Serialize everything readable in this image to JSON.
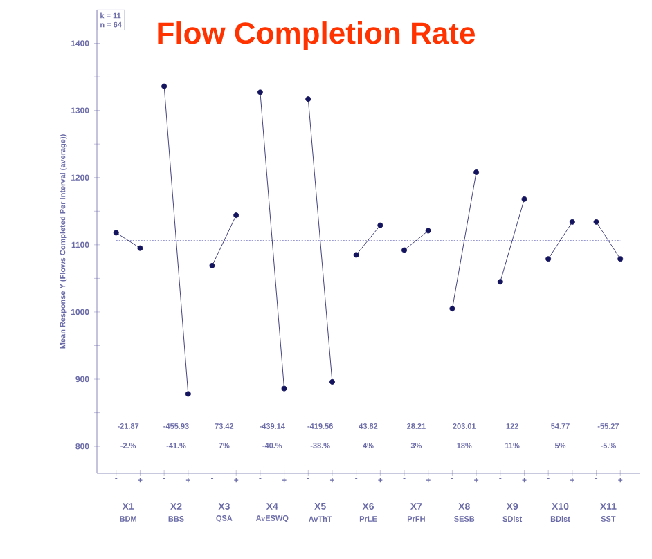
{
  "chart_data": {
    "type": "line",
    "title": "Flow Completion Rate",
    "ylabel": "Mean Response Y (Flows Completed Per Interval (average))",
    "categories": [
      "-",
      "+",
      "-",
      "+",
      "-",
      "+",
      "-",
      "+",
      "-",
      "+",
      "-",
      "+",
      "-",
      "+",
      "-",
      "+",
      "-",
      "+",
      "-",
      "+",
      "-",
      "+"
    ],
    "series": [
      {
        "color": "#14145e",
        "values": [
          1118,
          1095,
          null,
          null,
          null,
          null,
          null,
          null,
          null,
          null,
          null,
          null,
          null,
          null,
          null,
          null,
          null,
          null,
          null,
          null,
          null,
          null
        ]
      },
      {
        "color": "#14145e",
        "values": [
          null,
          null,
          1336,
          878,
          null,
          null,
          null,
          null,
          null,
          null,
          null,
          null,
          null,
          null,
          null,
          null,
          null,
          null,
          null,
          null,
          null,
          null
        ]
      },
      {
        "color": "#14145e",
        "values": [
          null,
          null,
          null,
          null,
          1069,
          1144,
          null,
          null,
          null,
          null,
          null,
          null,
          null,
          null,
          null,
          null,
          null,
          null,
          null,
          null,
          null,
          null
        ]
      },
      {
        "color": "#14145e",
        "values": [
          null,
          null,
          null,
          null,
          null,
          null,
          1327,
          886,
          null,
          null,
          null,
          null,
          null,
          null,
          null,
          null,
          null,
          null,
          null,
          null,
          null,
          null
        ]
      },
      {
        "color": "#14145e",
        "values": [
          null,
          null,
          null,
          null,
          null,
          null,
          null,
          null,
          1317,
          896,
          null,
          null,
          null,
          null,
          null,
          null,
          null,
          null,
          null,
          null,
          null,
          null
        ]
      },
      {
        "color": "#14145e",
        "values": [
          null,
          null,
          null,
          null,
          null,
          null,
          null,
          null,
          null,
          null,
          1085,
          1129,
          null,
          null,
          null,
          null,
          null,
          null,
          null,
          null,
          null,
          null
        ]
      },
      {
        "color": "#14145e",
        "values": [
          null,
          null,
          null,
          null,
          null,
          null,
          null,
          null,
          null,
          null,
          null,
          null,
          1092,
          1121,
          null,
          null,
          null,
          null,
          null,
          null,
          null,
          null
        ]
      },
      {
        "color": "#14145e",
        "values": [
          null,
          null,
          null,
          null,
          null,
          null,
          null,
          null,
          null,
          null,
          null,
          null,
          null,
          null,
          1005,
          1208,
          null,
          null,
          null,
          null,
          null,
          null
        ]
      },
      {
        "color": "#14145e",
        "values": [
          null,
          null,
          null,
          null,
          null,
          null,
          null,
          null,
          null,
          null,
          null,
          null,
          null,
          null,
          null,
          null,
          1045,
          1168,
          null,
          null,
          null,
          null
        ]
      },
      {
        "color": "#14145e",
        "values": [
          null,
          null,
          null,
          null,
          null,
          null,
          null,
          null,
          null,
          null,
          null,
          null,
          null,
          null,
          null,
          null,
          null,
          null,
          1079,
          1134,
          null,
          null
        ]
      },
      {
        "color": "#14145e",
        "values": [
          null,
          null,
          null,
          null,
          null,
          null,
          null,
          null,
          null,
          null,
          null,
          null,
          null,
          null,
          null,
          null,
          null,
          null,
          null,
          null,
          1134,
          1079
        ]
      }
    ],
    "ylim": [
      760,
      1450
    ],
    "yticks": [
      800,
      {
        "value": 850,
        "label": null
      },
      900,
      {
        "value": 950,
        "label": null
      },
      1000,
      {
        "value": 1050,
        "label": null
      },
      1100,
      {
        "value": 1150,
        "label": null
      },
      1200,
      {
        "value": 1250,
        "label": null
      },
      1300,
      {
        "value": 1350,
        "label": null
      },
      1400
    ],
    "ref_lines": [
      {
        "axis": "y",
        "value": 1106,
        "color": "#9a9ad0",
        "line_style": "dotted"
      }
    ],
    "marker": "circle",
    "line_style": "solid",
    "annotations": [
      "k = 11",
      "n = 64",
      "-21.87",
      "-455.93",
      "73.42",
      "-439.14",
      "-419.56",
      "43.82",
      "28.21",
      "203.01",
      "122",
      "54.77",
      "-55.27",
      "-2.%",
      "-41.%",
      "7%",
      "-40.%",
      "-38.%",
      "4%",
      "3%",
      "18%",
      "11%",
      "5%",
      "-5.%",
      "X1",
      "X2",
      "X3",
      "X4",
      "X5",
      "X6",
      "X7",
      "X8",
      "X9",
      "X10",
      "X11",
      "BDM",
      "BBS",
      "QSA",
      "AvESWQ",
      "AvThT",
      "PrLE",
      "PrFH",
      "SESB",
      "SDist",
      "BDist",
      "SST"
    ]
  }
}
